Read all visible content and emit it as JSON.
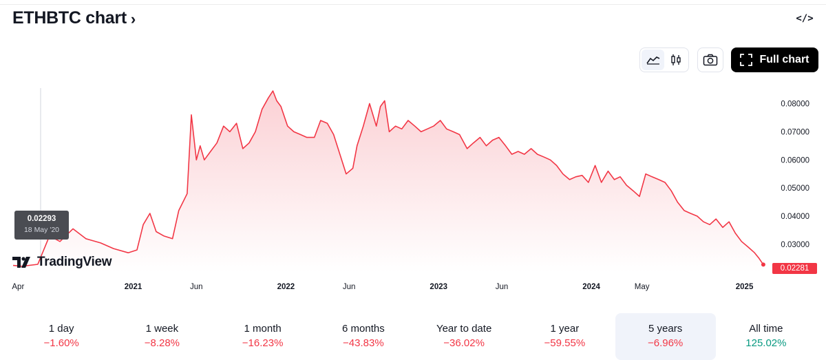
{
  "header": {
    "title": "ETHBTC chart",
    "title_chevron": "›",
    "embed_icon": "</>",
    "full_chart_label": "Full chart"
  },
  "toolbar": {
    "chart_style_options": [
      "line-chart-icon",
      "candles-icon"
    ],
    "active_style": "line-chart-icon"
  },
  "tooltip": {
    "value": "0.02293",
    "date": "18 May '20"
  },
  "branding": {
    "logo_text": "TradingView"
  },
  "last_price_label": "0.02281",
  "colors": {
    "line": "#f23645",
    "fill_top": "#fbd0d4",
    "fill_bottom": "#ffffff",
    "negative": "#f23645",
    "positive": "#089981"
  },
  "chart_data": {
    "type": "area",
    "title": "ETHBTC",
    "xlabel": "",
    "ylabel": "",
    "x_tick_labels": [
      {
        "label": "Apr",
        "date": "2020-04-01",
        "bold": false
      },
      {
        "label": "2021",
        "date": "2021-01-01",
        "bold": true
      },
      {
        "label": "Jun",
        "date": "2021-06-01",
        "bold": false
      },
      {
        "label": "2022",
        "date": "2022-01-01",
        "bold": true
      },
      {
        "label": "Jun",
        "date": "2022-06-01",
        "bold": false
      },
      {
        "label": "2023",
        "date": "2023-01-01",
        "bold": true
      },
      {
        "label": "Jun",
        "date": "2023-06-01",
        "bold": false
      },
      {
        "label": "2024",
        "date": "2024-01-01",
        "bold": true
      },
      {
        "label": "May",
        "date": "2024-05-01",
        "bold": false
      },
      {
        "label": "2025",
        "date": "2025-01-01",
        "bold": true
      }
    ],
    "y_tick_labels": [
      "0.08000",
      "0.07000",
      "0.06000",
      "0.05000",
      "0.04000",
      "0.03000"
    ],
    "y_ticks": [
      0.08,
      0.07,
      0.06,
      0.05,
      0.04,
      0.03
    ],
    "ylim": [
      0.0202,
      0.0855
    ],
    "xlim": [
      "2020-03-15",
      "2025-02-25"
    ],
    "grid": false,
    "x": [
      "2020-03-20",
      "2020-04-10",
      "2020-05-18",
      "2020-06-15",
      "2020-07-10",
      "2020-08-10",
      "2020-09-10",
      "2020-10-15",
      "2020-11-15",
      "2020-12-20",
      "2021-01-10",
      "2021-01-25",
      "2021-02-10",
      "2021-02-25",
      "2021-03-15",
      "2021-04-05",
      "2021-04-20",
      "2021-05-10",
      "2021-05-20",
      "2021-06-01",
      "2021-06-10",
      "2021-06-20",
      "2021-07-05",
      "2021-07-20",
      "2021-08-05",
      "2021-08-20",
      "2021-09-05",
      "2021-09-20",
      "2021-10-05",
      "2021-10-20",
      "2021-11-05",
      "2021-11-20",
      "2021-12-01",
      "2021-12-10",
      "2021-12-20",
      "2022-01-05",
      "2022-01-20",
      "2022-02-05",
      "2022-02-20",
      "2022-03-10",
      "2022-03-25",
      "2022-04-10",
      "2022-04-25",
      "2022-05-10",
      "2022-05-25",
      "2022-06-10",
      "2022-06-20",
      "2022-07-05",
      "2022-07-20",
      "2022-08-05",
      "2022-08-15",
      "2022-08-25",
      "2022-09-05",
      "2022-09-20",
      "2022-10-05",
      "2022-10-20",
      "2022-11-05",
      "2022-11-20",
      "2022-12-05",
      "2022-12-20",
      "2023-01-05",
      "2023-01-20",
      "2023-02-05",
      "2023-02-20",
      "2023-03-10",
      "2023-03-25",
      "2023-04-10",
      "2023-04-25",
      "2023-05-10",
      "2023-05-25",
      "2023-06-10",
      "2023-06-25",
      "2023-07-10",
      "2023-07-25",
      "2023-08-10",
      "2023-08-25",
      "2023-09-10",
      "2023-09-25",
      "2023-10-10",
      "2023-10-25",
      "2023-11-10",
      "2023-11-25",
      "2023-12-10",
      "2023-12-25",
      "2024-01-10",
      "2024-01-25",
      "2024-02-10",
      "2024-02-25",
      "2024-03-10",
      "2024-03-25",
      "2024-04-10",
      "2024-04-25",
      "2024-05-10",
      "2024-05-25",
      "2024-06-10",
      "2024-06-25",
      "2024-07-10",
      "2024-07-25",
      "2024-08-10",
      "2024-08-25",
      "2024-09-10",
      "2024-09-25",
      "2024-10-10",
      "2024-10-25",
      "2024-11-10",
      "2024-11-25",
      "2024-12-10",
      "2024-12-25",
      "2025-01-10",
      "2025-01-25",
      "2025-02-05",
      "2025-02-15"
    ],
    "series": [
      {
        "values": [
          0.0225,
          0.0222,
          0.0229,
          0.033,
          0.031,
          0.0355,
          0.032,
          0.0305,
          0.0285,
          0.027,
          0.028,
          0.037,
          0.041,
          0.0345,
          0.033,
          0.032,
          0.042,
          0.048,
          0.076,
          0.06,
          0.065,
          0.06,
          0.063,
          0.066,
          0.072,
          0.07,
          0.073,
          0.064,
          0.066,
          0.07,
          0.078,
          0.082,
          0.0845,
          0.081,
          0.079,
          0.072,
          0.07,
          0.069,
          0.068,
          0.068,
          0.074,
          0.073,
          0.069,
          0.062,
          0.055,
          0.057,
          0.065,
          0.072,
          0.08,
          0.072,
          0.079,
          0.081,
          0.07,
          0.072,
          0.071,
          0.074,
          0.072,
          0.07,
          0.071,
          0.072,
          0.074,
          0.071,
          0.07,
          0.069,
          0.064,
          0.066,
          0.068,
          0.065,
          0.067,
          0.068,
          0.065,
          0.062,
          0.063,
          0.062,
          0.064,
          0.062,
          0.061,
          0.06,
          0.058,
          0.055,
          0.053,
          0.054,
          0.0545,
          0.052,
          0.058,
          0.052,
          0.056,
          0.053,
          0.054,
          0.051,
          0.049,
          0.047,
          0.055,
          0.054,
          0.053,
          0.052,
          0.049,
          0.045,
          0.042,
          0.041,
          0.04,
          0.038,
          0.037,
          0.039,
          0.036,
          0.038,
          0.034,
          0.031,
          0.029,
          0.027,
          0.025,
          0.0228
        ]
      }
    ]
  },
  "periods": [
    {
      "label": "1 day",
      "change": "−1.60%",
      "sign": "neg",
      "active": false
    },
    {
      "label": "1 week",
      "change": "−8.28%",
      "sign": "neg",
      "active": false
    },
    {
      "label": "1 month",
      "change": "−16.23%",
      "sign": "neg",
      "active": false
    },
    {
      "label": "6 months",
      "change": "−43.83%",
      "sign": "neg",
      "active": false
    },
    {
      "label": "Year to date",
      "change": "−36.02%",
      "sign": "neg",
      "active": false
    },
    {
      "label": "1 year",
      "change": "−59.55%",
      "sign": "neg",
      "active": false
    },
    {
      "label": "5 years",
      "change": "−6.96%",
      "sign": "neg",
      "active": true
    },
    {
      "label": "All time",
      "change": "125.02%",
      "sign": "pos",
      "active": false
    }
  ]
}
